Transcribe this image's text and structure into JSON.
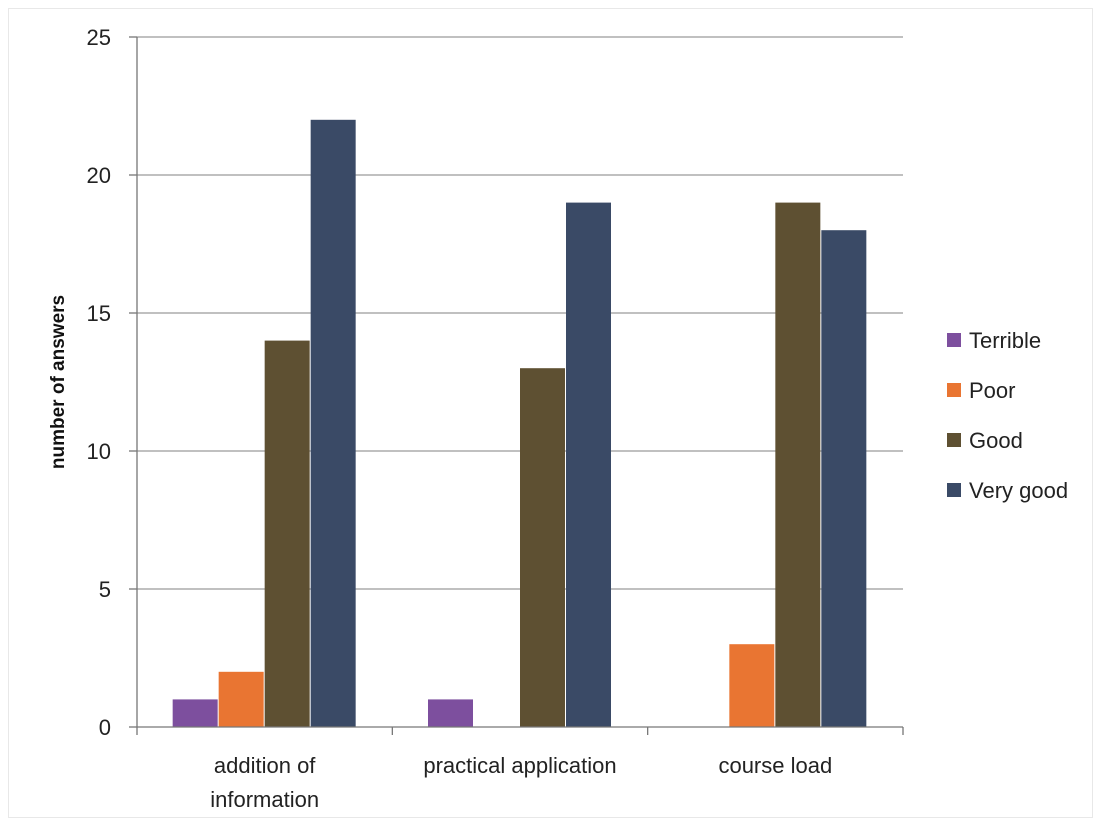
{
  "chart_data": {
    "type": "bar",
    "title": "",
    "xlabel": "",
    "ylabel": "number of answers",
    "ylim": [
      0,
      25
    ],
    "yticks": [
      0,
      5,
      10,
      15,
      20,
      25
    ],
    "grid": "horizontal",
    "legend_position": "right",
    "categories": [
      [
        "addition of",
        "information"
      ],
      [
        "practical application"
      ],
      [
        "course load"
      ]
    ],
    "series": [
      {
        "name": "Terrible",
        "color": "#7d4f9e",
        "values": [
          1,
          1,
          0
        ]
      },
      {
        "name": "Poor",
        "color": "#e97532",
        "values": [
          2,
          0,
          3
        ]
      },
      {
        "name": "Good",
        "color": "#5e5032",
        "values": [
          14,
          13,
          19
        ]
      },
      {
        "name": "Very good",
        "color": "#3a4a66",
        "values": [
          22,
          19,
          18
        ]
      }
    ]
  }
}
